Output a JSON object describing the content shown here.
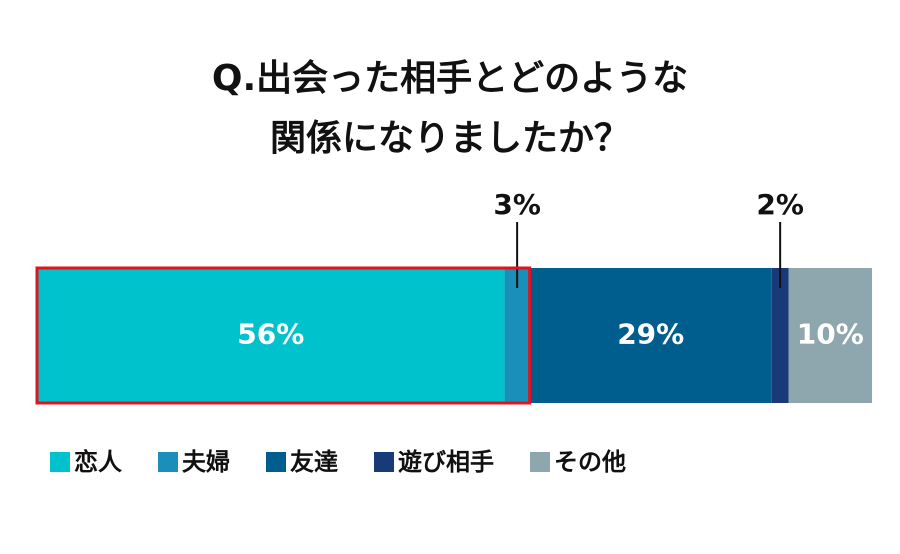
{
  "chart_data": {
    "type": "stacked-bar-100",
    "title": [
      "Q.出会った相手とどのような",
      "関係になりましたか？"
    ],
    "xlim": [
      0,
      100
    ],
    "series": [
      {
        "name": "恋人",
        "color": "#00c2cc",
        "values": [
          56
        ],
        "value_labels": [
          "56%"
        ]
      },
      {
        "name": "夫婦",
        "color": "#1a8fb9",
        "values": [
          3
        ],
        "value_labels": [
          "3%"
        ]
      },
      {
        "name": "友達",
        "color": "#005e8e",
        "values": [
          29
        ],
        "value_labels": [
          "29%"
        ]
      },
      {
        "name": "遊び相手",
        "color": "#193a78",
        "values": [
          2
        ],
        "value_labels": [
          "2%"
        ]
      },
      {
        "name": "その他",
        "color": "#8ea6ae",
        "values": [
          10
        ],
        "value_labels": [
          "10%"
        ]
      }
    ]
  }
}
